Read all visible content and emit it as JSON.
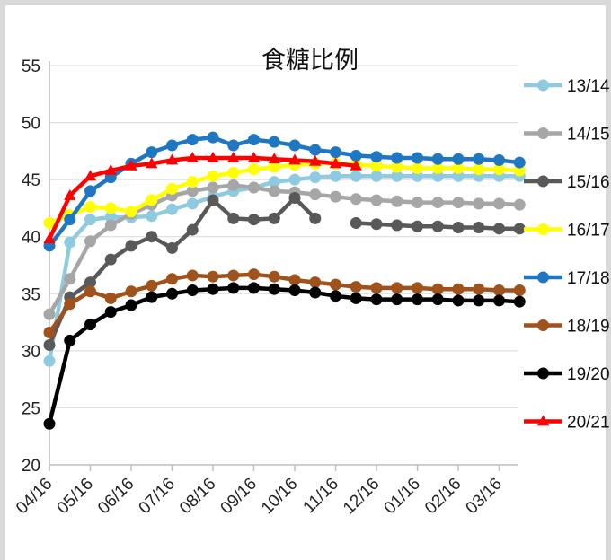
{
  "chart_data": {
    "type": "line",
    "title": "食糖比例",
    "xlabel": "",
    "ylabel": "",
    "ylim": [
      20,
      55
    ],
    "yticks": [
      20,
      25,
      30,
      35,
      40,
      45,
      50,
      55
    ],
    "xticks": [
      "04/16",
      "05/16",
      "06/16",
      "07/16",
      "08/16",
      "09/16",
      "10/16",
      "11/16",
      "12/16",
      "01/16",
      "02/16",
      "03/16"
    ],
    "grid": "horizontal",
    "legend": "right",
    "series": [
      {
        "name": "13/14",
        "color": "#8ecbe0",
        "marker": "circle",
        "x": [
          0,
          0.5,
          1,
          1.5,
          2,
          2.5,
          3,
          3.5,
          4,
          4.5,
          5,
          5.5,
          6,
          6.5,
          7,
          7.5,
          8,
          8.5,
          9,
          9.5,
          10,
          10.5,
          11,
          11.5
        ],
        "y": [
          29.1,
          39.5,
          41.5,
          41.7,
          41.7,
          41.8,
          42.4,
          42.9,
          43.5,
          44.0,
          44.3,
          44.8,
          45.0,
          45.2,
          45.3,
          45.3,
          45.3,
          45.3,
          45.3,
          45.3,
          45.3,
          45.3,
          45.3,
          45.3
        ]
      },
      {
        "name": "14/15",
        "color": "#a6a6a6",
        "marker": "circle",
        "x": [
          0,
          0.5,
          1,
          1.5,
          2,
          2.5,
          3,
          3.5,
          4,
          4.5,
          5,
          5.5,
          6,
          6.5,
          7,
          7.5,
          8,
          8.5,
          9,
          9.5,
          10,
          10.5,
          11,
          11.5
        ],
        "y": [
          33.2,
          36.3,
          39.6,
          41.0,
          42.0,
          42.8,
          43.6,
          44.0,
          44.3,
          44.5,
          44.3,
          44.0,
          43.9,
          43.7,
          43.5,
          43.3,
          43.2,
          43.1,
          43.0,
          43.0,
          43.0,
          42.9,
          42.9,
          42.8
        ]
      },
      {
        "name": "15/16",
        "color": "#595959",
        "marker": "circle",
        "x": [
          0,
          0.5,
          1,
          1.5,
          2,
          2.5,
          3,
          3.5,
          4,
          4.5,
          5,
          5.5,
          6,
          6.5,
          7.5,
          8,
          8.5,
          9,
          9.5,
          10,
          10.5,
          11,
          11.5
        ],
        "y": [
          30.5,
          34.7,
          36.0,
          38.0,
          39.2,
          40.0,
          39.0,
          40.6,
          43.2,
          41.6,
          41.5,
          41.6,
          43.4,
          41.6,
          41.2,
          41.1,
          41.0,
          40.9,
          40.9,
          40.8,
          40.8,
          40.7,
          40.7
        ]
      },
      {
        "name": "16/17",
        "color": "#ffff00",
        "marker": "circle",
        "x": [
          0,
          0.5,
          1,
          1.5,
          2,
          2.5,
          3,
          3.5,
          4,
          4.5,
          5,
          5.5,
          6,
          6.5,
          7,
          7.5,
          8,
          8.5,
          9,
          9.5,
          10,
          10.5,
          11,
          11.5
        ],
        "y": [
          41.2,
          41.9,
          42.6,
          42.5,
          42.2,
          43.2,
          44.2,
          44.8,
          45.3,
          45.6,
          45.9,
          46.1,
          46.3,
          46.4,
          46.4,
          46.3,
          46.2,
          46.1,
          46.0,
          46.0,
          46.0,
          45.9,
          45.9,
          45.8
        ]
      },
      {
        "name": "17/18",
        "color": "#1f77c4",
        "marker": "circle",
        "x": [
          0,
          0.5,
          1,
          1.5,
          2,
          2.5,
          3,
          3.5,
          4,
          4.5,
          5,
          5.5,
          6,
          6.5,
          7,
          7.5,
          8,
          8.5,
          9,
          9.5,
          10,
          10.5,
          11,
          11.5
        ],
        "y": [
          39.2,
          41.5,
          44.0,
          45.2,
          46.4,
          47.4,
          48.0,
          48.5,
          48.7,
          48.0,
          48.5,
          48.3,
          48.0,
          47.6,
          47.4,
          47.1,
          47.0,
          46.9,
          46.9,
          46.8,
          46.8,
          46.8,
          46.7,
          46.5
        ]
      },
      {
        "name": "18/19",
        "color": "#a0521c",
        "marker": "circle",
        "x": [
          0,
          0.5,
          1,
          1.5,
          2,
          2.5,
          3,
          3.5,
          4,
          4.5,
          5,
          5.5,
          6,
          6.5,
          7,
          7.5,
          8,
          8.5,
          9,
          9.5,
          10,
          10.5,
          11,
          11.5
        ],
        "y": [
          31.6,
          34.1,
          35.2,
          34.6,
          35.2,
          35.7,
          36.3,
          36.6,
          36.5,
          36.6,
          36.7,
          36.5,
          36.2,
          36.0,
          35.8,
          35.6,
          35.5,
          35.5,
          35.5,
          35.4,
          35.4,
          35.4,
          35.3,
          35.3
        ]
      },
      {
        "name": "19/20",
        "color": "#000000",
        "marker": "circle",
        "x": [
          0,
          0.5,
          1,
          1.5,
          2,
          2.5,
          3,
          3.5,
          4,
          4.5,
          5,
          5.5,
          6,
          6.5,
          7,
          7.5,
          8,
          8.5,
          9,
          9.5,
          10,
          10.5,
          11,
          11.5
        ],
        "y": [
          23.6,
          30.9,
          32.3,
          33.4,
          34.0,
          34.7,
          35.0,
          35.3,
          35.4,
          35.5,
          35.5,
          35.4,
          35.3,
          35.1,
          34.8,
          34.6,
          34.5,
          34.5,
          34.5,
          34.5,
          34.4,
          34.4,
          34.4,
          34.3
        ]
      },
      {
        "name": "20/21",
        "color": "#ff0000",
        "marker": "triangle",
        "x": [
          0,
          0.5,
          1,
          1.5,
          2,
          2.5,
          3,
          3.5,
          4,
          4.5,
          5,
          5.5,
          6,
          6.5,
          7,
          7.5
        ],
        "y": [
          39.8,
          43.6,
          45.3,
          45.8,
          46.2,
          46.4,
          46.7,
          46.9,
          46.9,
          46.9,
          46.9,
          46.8,
          46.7,
          46.6,
          46.4,
          46.2
        ]
      }
    ]
  }
}
